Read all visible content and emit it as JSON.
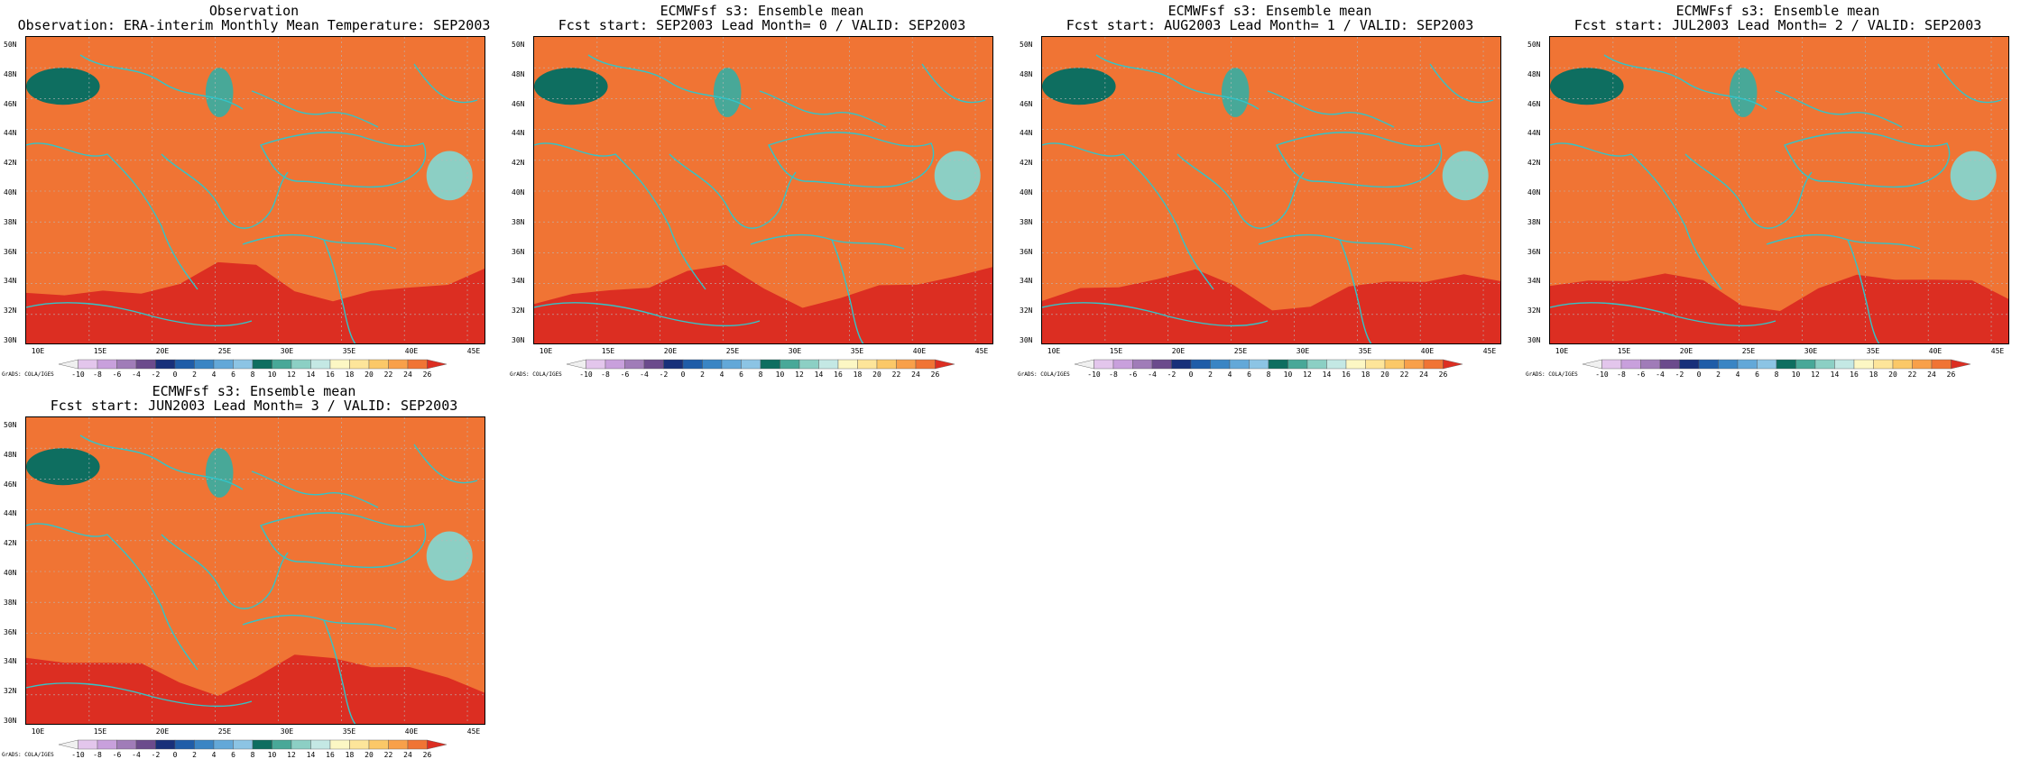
{
  "panels": [
    {
      "title_line1": "Observation",
      "title_line2": "Observation: ERA-interim Monthly Mean Temperature: SEP2003",
      "variant": 0
    },
    {
      "title_line1": "ECMWFsf s3: Ensemble mean",
      "title_line2": "Fcst start: SEP2003  Lead Month= 0 / VALID: SEP2003",
      "variant": 1
    },
    {
      "title_line1": "ECMWFsf s3: Ensemble mean",
      "title_line2": "Fcst start: AUG2003  Lead Month= 1 / VALID: SEP2003",
      "variant": 2
    },
    {
      "title_line1": "ECMWFsf s3: Ensemble mean",
      "title_line2": "Fcst start: JUL2003  Lead Month= 2 / VALID: SEP2003",
      "variant": 3
    },
    {
      "title_line1": "ECMWFsf s3: Ensemble mean",
      "title_line2": "Fcst start: JUN2003  Lead Month= 3 / VALID: SEP2003",
      "variant": 4
    }
  ],
  "lat_labels": [
    "50N",
    "48N",
    "46N",
    "44N",
    "42N",
    "40N",
    "38N",
    "36N",
    "34N",
    "32N",
    "30N"
  ],
  "lon_labels": [
    "10E",
    "15E",
    "20E",
    "25E",
    "30E",
    "35E",
    "40E",
    "45E"
  ],
  "colorbar": {
    "labels": [
      "-10",
      "-8",
      "-6",
      "-4",
      "-2",
      "0",
      "2",
      "4",
      "6",
      "8",
      "10",
      "12",
      "14",
      "16",
      "18",
      "20",
      "22",
      "24",
      "26"
    ],
    "colors": [
      "#f0f0f0",
      "#e3c6ec",
      "#c8a0dc",
      "#a07cb8",
      "#6b4b8c",
      "#18307a",
      "#1f5da8",
      "#3a85c4",
      "#63a8d8",
      "#8cc4e4",
      "#0e6e60",
      "#48a898",
      "#8ccfc4",
      "#c4e8e4",
      "#fcf7c4",
      "#fde59a",
      "#fbc868",
      "#f8a04a",
      "#f07434",
      "#dc2e22"
    ]
  },
  "credit": "GrADS: COLA/IGES"
}
